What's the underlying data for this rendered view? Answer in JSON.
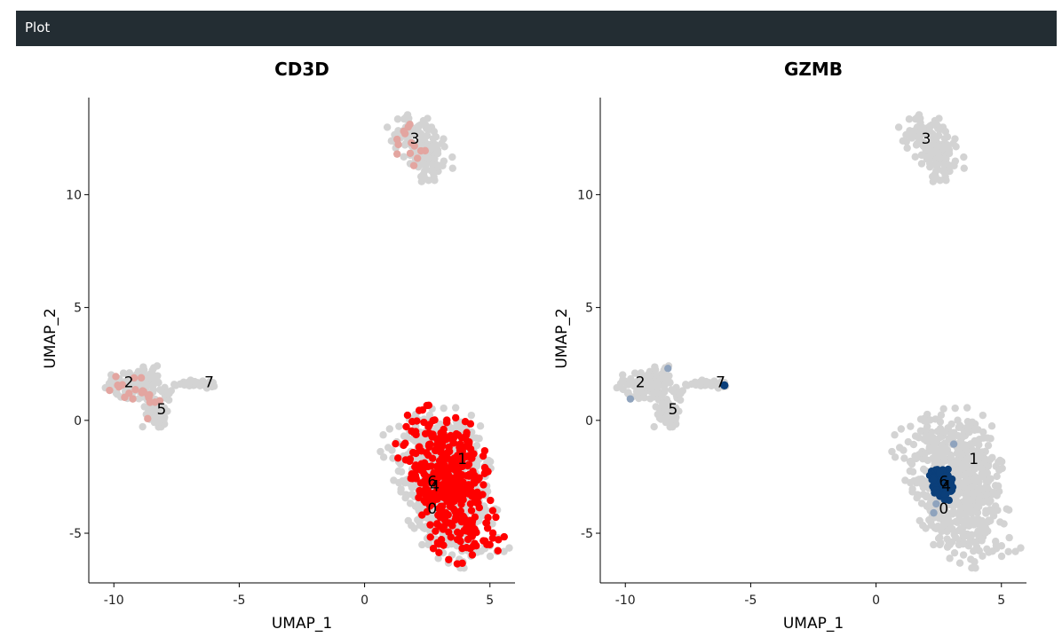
{
  "panel": {
    "title": "Plot"
  },
  "chart_data": [
    {
      "type": "scatter",
      "title": "CD3D",
      "xlabel": "UMAP_1",
      "ylabel": "UMAP_2",
      "xlim": [
        -11,
        6
      ],
      "ylim": [
        -7.2,
        14.3
      ],
      "xticks": [
        -10,
        -5,
        0,
        5
      ],
      "yticks": [
        -5,
        0,
        5,
        10
      ],
      "colors": {
        "low": "#d3d3d3",
        "high": "#ff0000"
      },
      "legend": "none",
      "clusters": [
        {
          "label": "0",
          "x": 2.7,
          "y": -3.9
        },
        {
          "label": "1",
          "x": 3.9,
          "y": -1.7
        },
        {
          "label": "2",
          "x": -9.4,
          "y": 1.7
        },
        {
          "label": "3",
          "x": 2.0,
          "y": 12.5
        },
        {
          "label": "4",
          "x": 2.8,
          "y": -2.9
        },
        {
          "label": "5",
          "x": -8.1,
          "y": 0.5
        },
        {
          "label": "6",
          "x": 2.7,
          "y": -2.7
        },
        {
          "label": "7",
          "x": -6.2,
          "y": 1.7
        }
      ]
    },
    {
      "type": "scatter",
      "title": "GZMB",
      "xlabel": "UMAP_1",
      "ylabel": "UMAP_2",
      "xlim": [
        -11,
        6
      ],
      "ylim": [
        -7.2,
        14.3
      ],
      "xticks": [
        -10,
        -5,
        0,
        5
      ],
      "yticks": [
        -5,
        0,
        5,
        10
      ],
      "colors": {
        "low": "#d3d3d3",
        "high": "#0b3f7a"
      },
      "legend": "none",
      "clusters": [
        {
          "label": "0",
          "x": 2.7,
          "y": -3.9
        },
        {
          "label": "1",
          "x": 3.9,
          "y": -1.7
        },
        {
          "label": "2",
          "x": -9.4,
          "y": 1.7
        },
        {
          "label": "3",
          "x": 2.0,
          "y": 12.5
        },
        {
          "label": "4",
          "x": 2.8,
          "y": -2.9
        },
        {
          "label": "5",
          "x": -8.1,
          "y": 0.5
        },
        {
          "label": "6",
          "x": 2.7,
          "y": -2.7
        },
        {
          "label": "7",
          "x": -6.2,
          "y": 1.7
        }
      ]
    }
  ]
}
